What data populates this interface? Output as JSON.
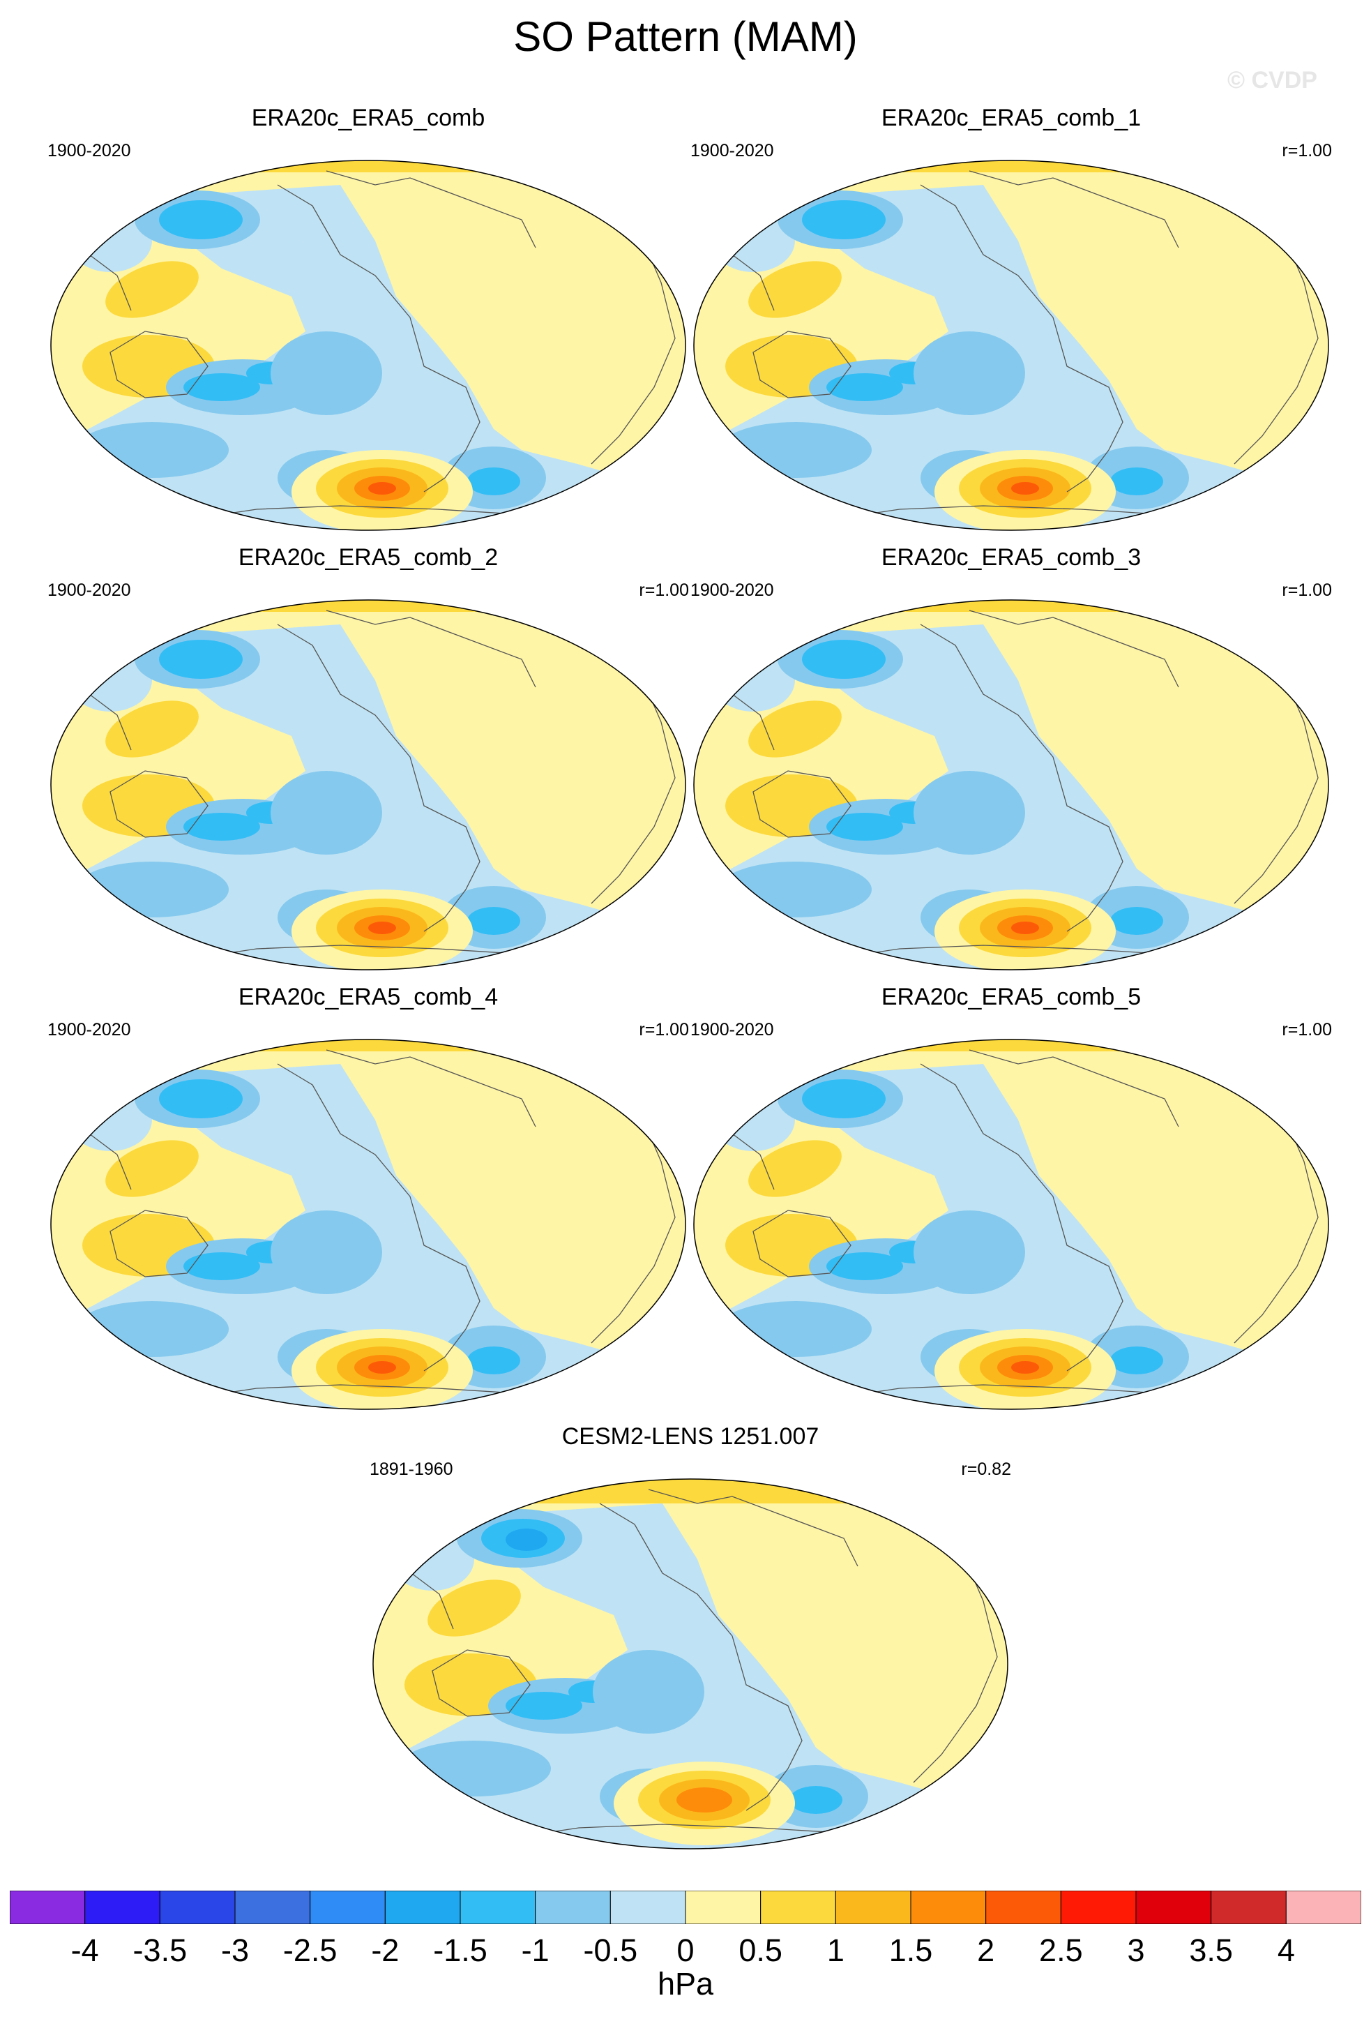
{
  "title": "SO Pattern (MAM)",
  "watermark": "© CVDP",
  "panels": [
    {
      "title": "ERA20c_ERA5_comb",
      "period": "1900-2020",
      "corr": ""
    },
    {
      "title": "ERA20c_ERA5_comb_1",
      "period": "1900-2020",
      "corr": "r=1.00"
    },
    {
      "title": "ERA20c_ERA5_comb_2",
      "period": "1900-2020",
      "corr": "r=1.00"
    },
    {
      "title": "ERA20c_ERA5_comb_3",
      "period": "1900-2020",
      "corr": "r=1.00"
    },
    {
      "title": "ERA20c_ERA5_comb_4",
      "period": "1900-2020",
      "corr": "r=1.00"
    },
    {
      "title": "ERA20c_ERA5_comb_5",
      "period": "1900-2020",
      "corr": "r=1.00"
    },
    {
      "title": "CESM2-LENS 1251.007",
      "period": "1891-1960",
      "corr": "r=0.82"
    }
  ],
  "colorbar": {
    "labels": [
      "-4",
      "-3.5",
      "-3",
      "-2.5",
      "-2",
      "-1.5",
      "-1",
      "-0.5",
      "0",
      "0.5",
      "1",
      "1.5",
      "2",
      "2.5",
      "3",
      "3.5",
      "4"
    ],
    "colors": [
      "#8a2be2",
      "#2d1cf5",
      "#2a45e8",
      "#3c6fe0",
      "#2f8bf5",
      "#1fa8f0",
      "#33bdf5",
      "#86c9ee",
      "#bfe3f4",
      "#fff5a6",
      "#fcd93c",
      "#fbb81c",
      "#fd8c0a",
      "#fd5a08",
      "#ff1a05",
      "#e0000c",
      "#d02a2a",
      "#fcb3b8"
    ],
    "units": "hPa"
  }
}
